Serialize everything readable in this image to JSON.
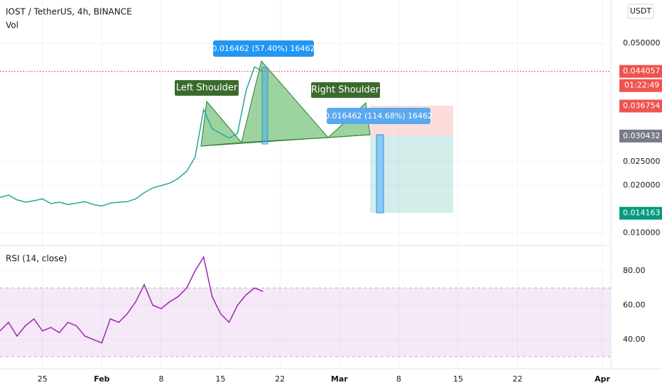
{
  "chart_data": [
    {
      "type": "line",
      "title": "IOST / TetherUS, 4h, BINANCE",
      "subtitle": "Vol",
      "currency": "USDT",
      "color": "#26a69a",
      "x": [
        -5,
        -4,
        -3,
        -2,
        -1,
        0,
        1,
        2,
        3,
        4,
        5,
        6,
        7,
        8,
        9,
        10,
        11,
        12,
        13,
        14,
        15,
        16,
        17,
        18,
        19,
        20,
        21,
        22,
        23,
        24,
        25,
        26
      ],
      "values": [
        0.0175,
        0.018,
        0.017,
        0.0165,
        0.0168,
        0.0172,
        0.0162,
        0.0165,
        0.016,
        0.0163,
        0.0166,
        0.016,
        0.0157,
        0.0163,
        0.0165,
        0.0166,
        0.0172,
        0.0185,
        0.0195,
        0.02,
        0.0205,
        0.0215,
        0.023,
        0.026,
        0.036,
        0.032,
        0.031,
        0.03,
        0.031,
        0.04,
        0.045,
        0.044
      ],
      "xlim": [
        -5,
        67
      ],
      "ylim": [
        0.0074,
        0.0591
      ],
      "yticks": [
        {
          "value": 0.01,
          "label": "0.010000"
        },
        {
          "value": 0.02,
          "label": "0.020000"
        },
        {
          "value": 0.025,
          "label": "0.025000"
        },
        {
          "value": 0.05,
          "label": "0.050000"
        }
      ],
      "price_labels": [
        {
          "value": 0.044057,
          "color": "#ef5350"
        },
        {
          "value": 0.036754,
          "color": "#ef5350"
        },
        {
          "value": 0.030432,
          "color": "#787b86"
        },
        {
          "value": 0.014163,
          "color": "#089981"
        }
      ],
      "countdown": "01:22:49",
      "annotations": [
        "Left Shoulder",
        "Right Shoulder",
        "0.016462 (57.40%) 16462",
        "0.016462 (114.68%) 16462"
      ]
    },
    {
      "type": "line",
      "title": "RSI (14, close)",
      "color": "#9c27b0",
      "x": [
        -5,
        -4,
        -3,
        -2,
        -1,
        0,
        1,
        2,
        3,
        4,
        5,
        6,
        7,
        8,
        9,
        10,
        11,
        12,
        13,
        14,
        15,
        16,
        17,
        18,
        19,
        20,
        21,
        22,
        23,
        24,
        25,
        26
      ],
      "values": [
        45,
        50,
        42,
        48,
        52,
        45,
        47,
        44,
        50,
        48,
        42,
        40,
        38,
        52,
        50,
        55,
        62,
        72,
        60,
        58,
        62,
        65,
        70,
        80,
        88,
        65,
        55,
        50,
        60,
        66,
        70,
        68
      ],
      "xlim": [
        -5,
        67
      ],
      "ylim": [
        23,
        94
      ],
      "band": [
        30,
        70
      ],
      "yticks": [
        {
          "value": 40,
          "label": "40.00"
        },
        {
          "value": 60,
          "label": "60.00"
        },
        {
          "value": 80,
          "label": "80.00"
        }
      ],
      "xticks": [
        {
          "value": 0,
          "label": "25"
        },
        {
          "value": 7,
          "label": "Feb"
        },
        {
          "value": 14,
          "label": "8"
        },
        {
          "value": 21,
          "label": "15"
        },
        {
          "value": 28,
          "label": "22"
        },
        {
          "value": 35,
          "label": "Mar"
        },
        {
          "value": 42,
          "label": "8"
        },
        {
          "value": 49,
          "label": "15"
        },
        {
          "value": 56,
          "label": "22"
        },
        {
          "value": 66,
          "label": "Apr"
        }
      ]
    }
  ]
}
